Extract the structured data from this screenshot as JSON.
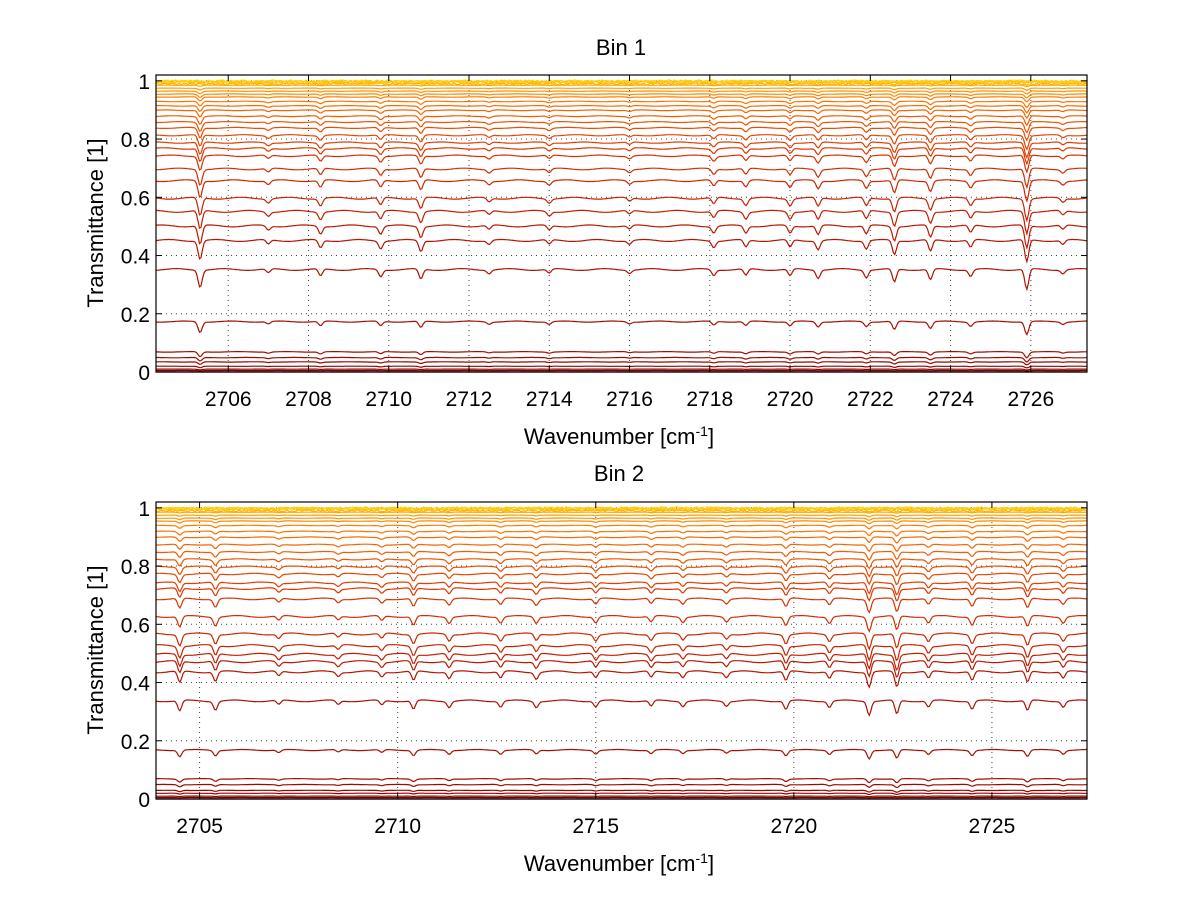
{
  "chart_data": [
    {
      "type": "line",
      "title": "Bin 1",
      "xlabel": "Wavenumber [cm",
      "xlabel_sup": "-1",
      "xlabel_end": "]",
      "ylabel": "Transmittance [1]",
      "xlim": [
        2704.2,
        2727.4
      ],
      "ylim": [
        0,
        1.02
      ],
      "xticks": [
        2706,
        2708,
        2710,
        2712,
        2714,
        2716,
        2718,
        2720,
        2722,
        2724,
        2726
      ],
      "xtick_labels": [
        "2706",
        "2708",
        "2710",
        "2712",
        "2714",
        "2716",
        "2718",
        "2720",
        "2722",
        "2724",
        "2726"
      ],
      "yticks": [
        0,
        0.2,
        0.4,
        0.6,
        0.8,
        1
      ],
      "ytick_labels": [
        "0",
        "0.2",
        "0.4",
        "0.6",
        "0.8",
        "1"
      ],
      "grid": true,
      "series_baselines": [
        0.0,
        0.005,
        0.01,
        0.02,
        0.035,
        0.05,
        0.07,
        0.175,
        0.355,
        0.455,
        0.505,
        0.555,
        0.6,
        0.66,
        0.7,
        0.745,
        0.77,
        0.79,
        0.815,
        0.84,
        0.86,
        0.88,
        0.9,
        0.915,
        0.93,
        0.945,
        0.955,
        0.965,
        0.975,
        0.985,
        0.99,
        0.995,
        0.998,
        1.0
      ],
      "absorption_lines": [
        {
          "x": 2705.3,
          "depth": 1.0
        },
        {
          "x": 2707.0,
          "depth": 0.35
        },
        {
          "x": 2708.3,
          "depth": 0.4
        },
        {
          "x": 2709.8,
          "depth": 0.55
        },
        {
          "x": 2710.8,
          "depth": 0.55
        },
        {
          "x": 2712.5,
          "depth": 0.3
        },
        {
          "x": 2714.0,
          "depth": 0.35
        },
        {
          "x": 2716.0,
          "depth": 0.3
        },
        {
          "x": 2718.1,
          "depth": 0.5
        },
        {
          "x": 2718.9,
          "depth": 0.45
        },
        {
          "x": 2720.0,
          "depth": 0.4
        },
        {
          "x": 2720.7,
          "depth": 0.45
        },
        {
          "x": 2721.9,
          "depth": 0.8
        },
        {
          "x": 2722.6,
          "depth": 0.95
        },
        {
          "x": 2723.5,
          "depth": 0.6
        },
        {
          "x": 2724.5,
          "depth": 0.4
        },
        {
          "x": 2725.9,
          "depth": 1.2
        },
        {
          "x": 2726.8,
          "depth": 0.4
        }
      ],
      "colors": [
        "#7a0000",
        "#b01000",
        "#e03a00",
        "#ff7a00",
        "#ffd000"
      ]
    },
    {
      "type": "line",
      "title": "Bin 2",
      "xlabel": "Wavenumber [cm",
      "xlabel_sup": "-1",
      "xlabel_end": "]",
      "ylabel": "Transmittance [1]",
      "xlim": [
        2703.9,
        2727.4
      ],
      "ylim": [
        0,
        1.02
      ],
      "xticks": [
        2705,
        2710,
        2715,
        2720,
        2725
      ],
      "xtick_labels": [
        "2705",
        "2710",
        "2715",
        "2720",
        "2725"
      ],
      "yticks": [
        0,
        0.2,
        0.4,
        0.6,
        0.8,
        1
      ],
      "ytick_labels": [
        "0",
        "0.2",
        "0.4",
        "0.6",
        "0.8",
        "1"
      ],
      "grid": true,
      "series_baselines": [
        0.0,
        0.005,
        0.01,
        0.02,
        0.03,
        0.05,
        0.07,
        0.17,
        0.34,
        0.44,
        0.475,
        0.5,
        0.53,
        0.57,
        0.63,
        0.69,
        0.725,
        0.745,
        0.775,
        0.8,
        0.825,
        0.85,
        0.875,
        0.9,
        0.92,
        0.94,
        0.955,
        0.965,
        0.975,
        0.985,
        0.99,
        0.995,
        0.998,
        1.0
      ],
      "absorption_lines": [
        {
          "x": 2704.5,
          "depth": 0.6
        },
        {
          "x": 2705.4,
          "depth": 0.8
        },
        {
          "x": 2707.0,
          "depth": 0.3
        },
        {
          "x": 2708.5,
          "depth": 0.35
        },
        {
          "x": 2709.6,
          "depth": 0.45
        },
        {
          "x": 2710.4,
          "depth": 0.45
        },
        {
          "x": 2711.3,
          "depth": 0.45
        },
        {
          "x": 2712.6,
          "depth": 0.35
        },
        {
          "x": 2713.5,
          "depth": 0.45
        },
        {
          "x": 2715.0,
          "depth": 0.3
        },
        {
          "x": 2716.4,
          "depth": 0.35
        },
        {
          "x": 2717.2,
          "depth": 0.35
        },
        {
          "x": 2718.3,
          "depth": 0.4
        },
        {
          "x": 2719.8,
          "depth": 0.5
        },
        {
          "x": 2720.9,
          "depth": 0.5
        },
        {
          "x": 2721.9,
          "depth": 0.9
        },
        {
          "x": 2722.6,
          "depth": 0.95
        },
        {
          "x": 2723.4,
          "depth": 0.55
        },
        {
          "x": 2724.5,
          "depth": 0.45
        },
        {
          "x": 2725.9,
          "depth": 0.9
        },
        {
          "x": 2726.8,
          "depth": 0.4
        }
      ],
      "colors": [
        "#7a0000",
        "#b01000",
        "#e03a00",
        "#ff7a00",
        "#ffd000"
      ]
    }
  ]
}
